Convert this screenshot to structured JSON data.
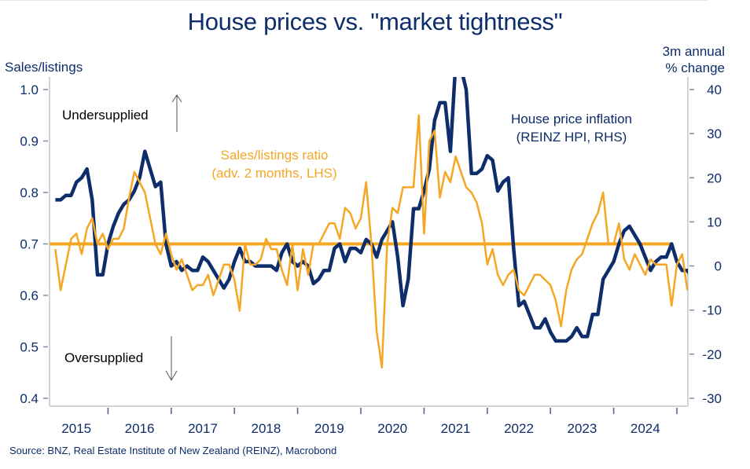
{
  "chart_data": {
    "type": "line",
    "title": "House prices vs. \"market tightness\"",
    "ylabel_left": "Sales/listings",
    "ylabel_right": [
      "3m annual",
      "% change"
    ],
    "ylim_left": [
      0.4,
      1.0
    ],
    "ylim_right": [
      -30,
      40
    ],
    "yticks_left": [
      "1.0",
      "0.9",
      "0.8",
      "0.7",
      "0.6",
      "0.5",
      "0.4"
    ],
    "yticks_right": [
      "40",
      "30",
      "20",
      "10",
      "0",
      "-10",
      "-20",
      "-30"
    ],
    "xticks": [
      "2015",
      "2016",
      "2017",
      "2018",
      "2019",
      "2020",
      "2021",
      "2022",
      "2023",
      "2024"
    ],
    "x_start": "2015-03",
    "grid": false,
    "reference_line": {
      "axis": "left",
      "value": 0.7,
      "color": "#f5a623"
    },
    "annotations": {
      "undersupplied": "Undersupplied",
      "oversupplied": "Oversupplied",
      "orange_label": [
        "Sales/listings ratio",
        "(adv. 2 months, LHS)"
      ],
      "blue_label": [
        "House price inflation",
        "(REINZ HPI, RHS)"
      ]
    },
    "series": [
      {
        "name": "House price inflation (REINZ HPI, RHS)",
        "axis": "right",
        "color": "#0d2d6b",
        "values": [
          15,
          15,
          16,
          16,
          19,
          20,
          22,
          15,
          -2,
          -2,
          5,
          9,
          12,
          14,
          15,
          17,
          20,
          26,
          22,
          18,
          19,
          5,
          0,
          1,
          -1,
          0,
          -1,
          -1,
          2,
          1,
          -1,
          -3,
          -5,
          -3,
          1,
          4,
          1,
          1,
          0,
          0,
          0,
          0,
          -1,
          3,
          5,
          1,
          0,
          1,
          0,
          -4,
          -3,
          -1,
          -1,
          4,
          5,
          1,
          4,
          4,
          3,
          6,
          5,
          2,
          6,
          8,
          10,
          2,
          -9,
          -3,
          13,
          13,
          17,
          22,
          33,
          37,
          37,
          26,
          46,
          45,
          40,
          21,
          21,
          22,
          25,
          24,
          17,
          19,
          20,
          4,
          -9,
          -8,
          -11,
          -14,
          -14,
          -12,
          -15,
          -17,
          -17,
          -17,
          -16,
          -14,
          -16,
          -16,
          -11,
          -11,
          -3,
          -1,
          1,
          5,
          8,
          9,
          7,
          5,
          2,
          -1,
          1,
          2,
          2,
          5,
          1,
          -1,
          -1,
          -3,
          -4,
          -5,
          -5,
          -1
        ]
      },
      {
        "name": "Sales/listings ratio (adv. 2 months, LHS)",
        "axis": "left",
        "color": "#f5a623",
        "values": [
          0.69,
          0.61,
          0.66,
          0.71,
          0.72,
          0.68,
          0.73,
          0.75,
          0.7,
          0.72,
          0.69,
          0.71,
          0.71,
          0.73,
          0.79,
          0.84,
          0.82,
          0.8,
          0.75,
          0.7,
          0.68,
          0.72,
          0.68,
          0.65,
          0.67,
          0.64,
          0.61,
          0.62,
          0.62,
          0.64,
          0.6,
          0.63,
          0.66,
          0.66,
          0.63,
          0.57,
          0.7,
          0.66,
          0.66,
          0.67,
          0.71,
          0.69,
          0.69,
          0.65,
          0.62,
          0.7,
          0.61,
          0.69,
          0.64,
          0.7,
          0.7,
          0.72,
          0.74,
          0.74,
          0.71,
          0.77,
          0.76,
          0.73,
          0.75,
          0.82,
          0.7,
          0.53,
          0.46,
          0.7,
          0.77,
          0.76,
          0.81,
          0.81,
          0.81,
          0.95,
          0.72,
          0.9,
          0.92,
          0.79,
          0.84,
          0.82,
          0.87,
          0.84,
          0.81,
          0.8,
          0.78,
          0.74,
          0.66,
          0.69,
          0.64,
          0.62,
          0.64,
          0.65,
          0.61,
          0.6,
          0.62,
          0.64,
          0.64,
          0.63,
          0.62,
          0.59,
          0.54,
          0.61,
          0.65,
          0.67,
          0.68,
          0.71,
          0.74,
          0.76,
          0.8,
          0.7,
          0.7,
          0.74,
          0.67,
          0.65,
          0.68,
          0.66,
          0.64,
          0.67,
          0.66,
          0.66,
          0.66,
          0.58,
          0.66,
          0.68,
          0.61
        ]
      }
    ]
  },
  "source": "Source: BNZ, Real Estate Institute of New Zealand (REINZ), Macrobond"
}
